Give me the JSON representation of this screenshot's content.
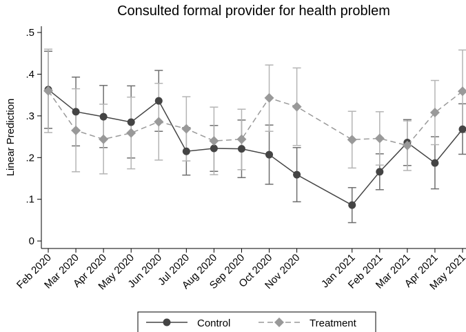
{
  "chart_data": {
    "type": "line",
    "title": "Consulted formal provider for health problem",
    "y_label": "Linear Prediction",
    "categories": [
      "Feb 2020",
      "Mar 2020",
      "Apr 2020",
      "May 2020",
      "Jun 2020",
      "Jul 2020",
      "Aug 2020",
      "Sep 2020",
      "Oct 2020",
      "Nov 2020",
      "Jan 2021",
      "Feb 2021",
      "Mar 2021",
      "Apr 2021",
      "May 2021"
    ],
    "series": [
      {
        "name": "Control",
        "color": "#444444",
        "marker": "circle",
        "dash": false,
        "bar_color": "#6e6e6e",
        "values": [
          0.363,
          0.31,
          0.298,
          0.285,
          0.336,
          0.215,
          0.222,
          0.221,
          0.207,
          0.159,
          0.086,
          0.166,
          0.236,
          0.187,
          0.268
        ],
        "ci_low": [
          0.27,
          0.228,
          0.224,
          0.199,
          0.263,
          0.158,
          0.167,
          0.152,
          0.136,
          0.094,
          0.044,
          0.123,
          0.181,
          0.125,
          0.208
        ],
        "ci_high": [
          0.455,
          0.393,
          0.373,
          0.372,
          0.409,
          0.272,
          0.277,
          0.29,
          0.278,
          0.224,
          0.128,
          0.209,
          0.291,
          0.25,
          0.329
        ]
      },
      {
        "name": "Treatment",
        "color": "#999999",
        "marker": "diamond",
        "dash": true,
        "bar_color": "#b4b4b4",
        "values": [
          0.36,
          0.265,
          0.244,
          0.259,
          0.286,
          0.269,
          0.24,
          0.244,
          0.343,
          0.322,
          0.243,
          0.246,
          0.229,
          0.308,
          0.359
        ],
        "ci_low": [
          0.26,
          0.166,
          0.161,
          0.173,
          0.194,
          0.192,
          0.159,
          0.171,
          0.263,
          0.229,
          0.175,
          0.182,
          0.169,
          0.231,
          0.26
        ],
        "ci_high": [
          0.46,
          0.365,
          0.328,
          0.345,
          0.378,
          0.346,
          0.321,
          0.316,
          0.422,
          0.415,
          0.311,
          0.31,
          0.288,
          0.385,
          0.458
        ]
      }
    ],
    "ylim": [
      -0.018,
      0.515
    ],
    "yticks": [
      0,
      {
        "value": 0.1,
        "label": ".1"
      },
      {
        "value": 0.2,
        "label": ".2"
      },
      {
        "value": 0.3,
        "label": ".3"
      },
      {
        "value": 0.4,
        "label": ".4"
      },
      {
        "value": 0.5,
        "label": ".5"
      }
    ]
  }
}
